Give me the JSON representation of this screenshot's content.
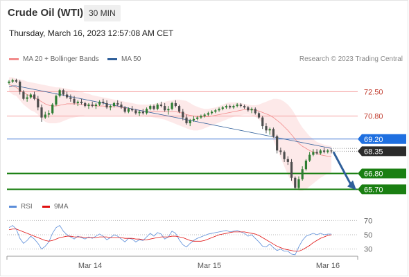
{
  "header": {
    "title": "Crude Oil (WTI)",
    "timeframe": "30 MIN",
    "datetime": "Thursday, March 16, 2023 12:57:08 AM CET"
  },
  "legend": {
    "ma20_label": "MA 20 + Bollinger Bands",
    "ma20_color": "#f28b8b",
    "ma50_label": "MA 50",
    "ma50_color": "#2f5f9a",
    "research": "Research © 2023 Trading Central"
  },
  "rsi_legend": {
    "rsi_label": "RSI",
    "rsi_color": "#5b8dd9",
    "ma_label": "9MA",
    "ma_color": "#e01010"
  },
  "chart_data": [
    {
      "type": "candlestick",
      "title": "Crude Oil (WTI)",
      "x_labels": [
        "Mar 14",
        "Mar 15",
        "Mar 16"
      ],
      "ylim": [
        64.8,
        74.3
      ],
      "candles": [
        [
          73.1,
          73.3,
          73.0,
          73.2
        ],
        [
          73.2,
          73.4,
          73.1,
          73.3
        ],
        [
          73.3,
          73.4,
          73.1,
          73.2
        ],
        [
          73.2,
          73.3,
          72.3,
          72.5
        ],
        [
          72.5,
          72.6,
          71.9,
          72.0
        ],
        [
          72.0,
          72.3,
          71.8,
          72.1
        ],
        [
          72.1,
          72.4,
          72.0,
          72.3
        ],
        [
          72.3,
          72.5,
          71.9,
          72.0
        ],
        [
          72.0,
          72.2,
          71.2,
          71.4
        ],
        [
          71.4,
          71.6,
          70.4,
          70.7
        ],
        [
          70.7,
          71.1,
          70.6,
          70.9
        ],
        [
          70.9,
          71.2,
          70.7,
          71.0
        ],
        [
          71.0,
          71.7,
          70.9,
          71.6
        ],
        [
          71.6,
          72.3,
          71.5,
          72.2
        ],
        [
          72.2,
          72.7,
          72.1,
          72.6
        ],
        [
          72.6,
          72.7,
          72.2,
          72.3
        ],
        [
          72.3,
          72.5,
          72.0,
          72.1
        ],
        [
          72.1,
          72.3,
          71.8,
          72.0
        ],
        [
          72.0,
          72.2,
          71.6,
          71.7
        ],
        [
          71.7,
          71.9,
          71.5,
          71.8
        ],
        [
          71.8,
          72.0,
          71.6,
          71.7
        ],
        [
          71.7,
          71.8,
          71.4,
          71.5
        ],
        [
          71.5,
          71.7,
          71.3,
          71.6
        ],
        [
          71.6,
          71.8,
          71.4,
          71.5
        ],
        [
          71.5,
          71.7,
          71.3,
          71.6
        ],
        [
          71.6,
          71.9,
          71.5,
          71.8
        ],
        [
          71.8,
          72.0,
          71.6,
          71.7
        ],
        [
          71.7,
          71.9,
          71.3,
          71.4
        ],
        [
          71.4,
          71.6,
          71.2,
          71.5
        ],
        [
          71.5,
          71.8,
          71.4,
          71.7
        ],
        [
          71.7,
          71.9,
          71.5,
          71.6
        ],
        [
          71.6,
          71.8,
          71.3,
          71.4
        ],
        [
          71.4,
          71.5,
          71.0,
          71.1
        ],
        [
          71.1,
          71.4,
          71.0,
          71.3
        ],
        [
          71.3,
          71.5,
          71.1,
          71.2
        ],
        [
          71.2,
          71.3,
          70.9,
          71.0
        ],
        [
          71.0,
          71.2,
          70.8,
          71.1
        ],
        [
          71.1,
          71.3,
          70.9,
          71.0
        ],
        [
          71.0,
          71.4,
          70.9,
          71.3
        ],
        [
          71.3,
          71.6,
          71.2,
          71.5
        ],
        [
          71.5,
          71.6,
          71.2,
          71.3
        ],
        [
          71.3,
          71.7,
          71.2,
          71.6
        ],
        [
          71.6,
          71.8,
          71.4,
          71.5
        ],
        [
          71.5,
          71.7,
          71.1,
          71.2
        ],
        [
          71.2,
          71.5,
          70.9,
          71.3
        ],
        [
          71.3,
          71.8,
          71.2,
          71.7
        ],
        [
          71.7,
          71.9,
          71.4,
          71.5
        ],
        [
          71.5,
          71.6,
          71.0,
          71.1
        ],
        [
          71.1,
          71.3,
          70.5,
          70.7
        ],
        [
          70.7,
          70.9,
          70.2,
          70.3
        ],
        [
          70.3,
          70.6,
          70.1,
          70.5
        ],
        [
          70.5,
          70.8,
          70.4,
          70.6
        ],
        [
          70.6,
          70.8,
          70.5,
          70.7
        ],
        [
          70.7,
          70.9,
          70.6,
          70.8
        ],
        [
          70.8,
          71.0,
          70.7,
          70.9
        ],
        [
          70.9,
          71.1,
          70.8,
          71.0
        ],
        [
          71.0,
          71.2,
          70.9,
          71.1
        ],
        [
          71.1,
          71.3,
          71.0,
          71.2
        ],
        [
          71.2,
          71.4,
          71.1,
          71.3
        ],
        [
          71.3,
          71.5,
          71.2,
          71.4
        ],
        [
          71.4,
          71.6,
          71.3,
          71.5
        ],
        [
          71.5,
          71.6,
          71.3,
          71.4
        ],
        [
          71.4,
          71.6,
          71.3,
          71.5
        ],
        [
          71.5,
          71.7,
          71.4,
          71.6
        ],
        [
          71.6,
          71.7,
          71.4,
          71.5
        ],
        [
          71.5,
          71.6,
          71.3,
          71.4
        ],
        [
          71.4,
          71.5,
          71.1,
          71.2
        ],
        [
          71.2,
          71.4,
          71.0,
          71.3
        ],
        [
          71.3,
          71.4,
          70.9,
          71.0
        ],
        [
          71.0,
          71.1,
          70.6,
          70.7
        ],
        [
          70.7,
          70.8,
          69.9,
          70.1
        ],
        [
          70.1,
          70.3,
          69.6,
          69.8
        ],
        [
          69.8,
          70.0,
          69.5,
          69.9
        ],
        [
          69.9,
          70.0,
          69.3,
          69.4
        ],
        [
          69.4,
          69.5,
          68.2,
          68.4
        ],
        [
          68.4,
          68.6,
          68.1,
          68.3
        ],
        [
          68.3,
          68.4,
          67.6,
          67.8
        ],
        [
          67.8,
          68.0,
          67.4,
          67.6
        ],
        [
          67.6,
          67.8,
          66.3,
          66.5
        ],
        [
          66.5,
          66.6,
          65.7,
          65.8
        ],
        [
          65.8,
          66.6,
          65.7,
          66.4
        ],
        [
          66.4,
          67.3,
          66.3,
          67.1
        ],
        [
          67.1,
          67.8,
          67.0,
          67.7
        ],
        [
          67.7,
          68.3,
          67.6,
          68.1
        ],
        [
          68.1,
          68.5,
          68.0,
          68.3
        ],
        [
          68.3,
          68.5,
          68.1,
          68.2
        ],
        [
          68.2,
          68.5,
          68.1,
          68.4
        ],
        [
          68.4,
          68.6,
          68.2,
          68.3
        ],
        [
          68.3,
          68.5,
          68.2,
          68.4
        ],
        [
          68.4,
          68.5,
          68.2,
          68.35
        ]
      ],
      "ma20": [
        73.0,
        72.9,
        72.8,
        72.6,
        72.45,
        72.3,
        72.2,
        72.1,
        71.95,
        71.8,
        71.65,
        71.55,
        71.5,
        71.5,
        71.55,
        71.6,
        71.65,
        71.65,
        71.65,
        71.65,
        71.6,
        71.6,
        71.55,
        71.55,
        71.5,
        71.5,
        71.5,
        71.45,
        71.45,
        71.45,
        71.45,
        71.4,
        71.35,
        71.35,
        71.3,
        71.25,
        71.2,
        71.15,
        71.1,
        71.1,
        71.1,
        71.1,
        71.1,
        71.1,
        71.1,
        71.1,
        71.1,
        71.05,
        71.0,
        70.9,
        70.85,
        70.8,
        70.75,
        70.75,
        70.75,
        70.75,
        70.8,
        70.85,
        70.9,
        70.95,
        71.0,
        71.05,
        71.1,
        71.15,
        71.2,
        71.25,
        71.25,
        71.25,
        71.2,
        71.15,
        71.05,
        70.95,
        70.85,
        70.7,
        70.5,
        70.3,
        70.05,
        69.8,
        69.5,
        69.2,
        68.9,
        68.7,
        68.55,
        68.4,
        68.3,
        68.2,
        68.1,
        68.05,
        68.0,
        68.0
      ],
      "bb_upper": [
        73.5,
        73.5,
        73.4,
        73.35,
        73.3,
        73.2,
        73.15,
        73.1,
        73.05,
        73.0,
        72.95,
        72.9,
        72.85,
        72.8,
        72.8,
        72.75,
        72.7,
        72.65,
        72.6,
        72.55,
        72.5,
        72.4,
        72.35,
        72.25,
        72.2,
        72.15,
        72.1,
        72.05,
        72.0,
        71.95,
        71.9,
        71.85,
        71.8,
        71.75,
        71.7,
        71.65,
        71.6,
        71.6,
        71.6,
        71.6,
        71.65,
        71.7,
        71.75,
        71.8,
        71.85,
        71.9,
        71.95,
        71.95,
        71.9,
        71.85,
        71.7,
        71.55,
        71.45,
        71.35,
        71.3,
        71.3,
        71.35,
        71.4,
        71.5,
        71.6,
        71.7,
        71.75,
        71.75,
        71.75,
        71.7,
        71.65,
        71.6,
        71.55,
        71.55,
        71.6,
        71.7,
        71.8,
        71.9,
        72.0,
        72.0,
        71.95,
        71.8,
        71.6,
        71.3,
        70.9,
        70.4,
        70.0,
        69.7,
        69.4,
        69.2,
        69.0,
        68.9,
        68.8,
        68.75,
        68.7
      ],
      "bb_lower": [
        72.5,
        72.3,
        72.2,
        71.9,
        71.6,
        71.4,
        71.2,
        71.1,
        70.9,
        70.6,
        70.4,
        70.3,
        70.3,
        70.3,
        70.35,
        70.45,
        70.55,
        70.65,
        70.7,
        70.75,
        70.8,
        70.85,
        70.85,
        70.85,
        70.85,
        70.85,
        70.85,
        70.85,
        70.85,
        70.85,
        70.85,
        70.85,
        70.85,
        70.85,
        70.85,
        70.85,
        70.85,
        70.8,
        70.75,
        70.75,
        70.7,
        70.65,
        70.6,
        70.55,
        70.45,
        70.35,
        70.25,
        70.15,
        70.05,
        69.95,
        69.85,
        69.8,
        69.8,
        69.85,
        69.95,
        70.05,
        70.15,
        70.25,
        70.35,
        70.45,
        70.55,
        70.65,
        70.75,
        70.8,
        70.85,
        70.9,
        70.9,
        70.85,
        70.75,
        70.55,
        70.3,
        70.0,
        69.6,
        69.1,
        68.5,
        67.9,
        67.3,
        66.7,
        66.2,
        65.8,
        65.6,
        65.6,
        65.7,
        65.9,
        66.1,
        66.3,
        66.5,
        66.65,
        66.8,
        66.9
      ],
      "ma50": [
        72.85,
        72.9,
        72.9,
        72.85,
        72.8,
        72.75,
        72.7,
        72.65,
        72.6,
        72.55,
        72.5,
        72.45,
        72.4,
        72.35,
        72.3,
        72.25,
        72.2,
        72.15,
        72.1,
        72.05,
        72.0,
        71.95,
        71.9,
        71.85,
        71.8,
        71.75,
        71.7,
        71.65,
        71.6,
        71.55,
        71.5,
        71.45,
        71.4,
        71.35,
        71.3,
        71.25,
        71.2,
        71.15,
        71.1,
        71.05,
        71.0,
        70.95,
        70.9,
        70.85,
        70.8,
        70.75,
        70.7,
        70.65,
        70.6,
        70.55,
        70.5,
        70.45,
        70.4,
        70.35,
        70.3,
        70.25,
        70.2,
        70.15,
        70.1,
        70.05,
        70.0,
        69.95,
        69.9,
        69.85,
        69.8,
        69.75,
        69.7,
        69.65,
        69.6,
        69.55,
        69.5,
        69.45,
        69.4,
        69.35,
        69.3,
        69.25,
        69.2,
        69.15,
        69.1,
        69.05,
        69.0,
        68.95,
        68.9,
        68.85,
        68.8,
        68.75,
        68.7,
        68.65,
        68.6,
        68.55
      ],
      "levels": [
        {
          "value": 72.5,
          "label": "72.50",
          "kind": "resistance",
          "color": "#f4a0a0",
          "text_color": "#c0392b"
        },
        {
          "value": 70.8,
          "label": "70.80",
          "kind": "resistance",
          "color": "#f4a0a0",
          "text_color": "#c0392b"
        },
        {
          "value": 69.2,
          "label": "69.20",
          "kind": "pivot",
          "color": "#4a7fd6",
          "badge": "#1e6fe0"
        },
        {
          "value": 68.35,
          "label": "68.35",
          "kind": "last",
          "color": "#aaaaaa",
          "badge": "#2b2b2b"
        },
        {
          "value": 66.8,
          "label": "66.80",
          "kind": "support",
          "color": "#1a7f12",
          "badge": "#1a7f12"
        },
        {
          "value": 65.7,
          "label": "65.70",
          "kind": "support",
          "color": "#1a7f12",
          "badge": "#1a7f12"
        }
      ],
      "forecast_arrow": {
        "from": 68.3,
        "to": 65.7,
        "color": "#2f5f9a"
      }
    },
    {
      "type": "line",
      "title": "RSI",
      "ylim": [
        20,
        80
      ],
      "yticks": [
        "70",
        "50",
        "30"
      ],
      "series": [
        {
          "name": "RSI",
          "color": "#5b8dd9",
          "values": [
            60,
            63,
            58,
            45,
            38,
            42,
            48,
            44,
            38,
            30,
            34,
            40,
            52,
            60,
            63,
            55,
            50,
            47,
            44,
            48,
            46,
            44,
            47,
            45,
            48,
            51,
            48,
            43,
            46,
            50,
            48,
            44,
            40,
            45,
            44,
            40,
            43,
            42,
            47,
            52,
            48,
            53,
            51,
            44,
            47,
            55,
            52,
            43,
            36,
            33,
            38,
            42,
            45,
            47,
            49,
            51,
            52,
            53,
            54,
            55,
            56,
            54,
            55,
            56,
            54,
            52,
            48,
            50,
            45,
            40,
            34,
            33,
            37,
            32,
            28,
            30,
            27,
            27,
            23,
            22,
            33,
            42,
            48,
            50,
            52,
            50,
            52,
            50,
            51,
            51
          ]
        },
        {
          "name": "9MA",
          "color": "#e01010",
          "values": [
            57,
            58,
            58,
            56,
            54,
            52,
            50,
            48,
            46,
            44,
            42,
            41,
            42,
            44,
            46,
            47,
            48,
            48,
            47,
            47,
            47,
            46,
            46,
            46,
            46,
            47,
            47,
            47,
            46,
            46,
            46,
            46,
            45,
            45,
            45,
            44,
            44,
            43,
            43,
            44,
            45,
            46,
            47,
            47,
            47,
            48,
            48,
            47,
            46,
            44,
            42,
            41,
            41,
            41,
            42,
            44,
            46,
            48,
            50,
            51,
            52,
            53,
            54,
            54,
            54,
            54,
            53,
            52,
            51,
            49,
            46,
            43,
            40,
            37,
            34,
            32,
            30,
            29,
            28,
            27,
            27,
            29,
            32,
            35,
            39,
            42,
            45,
            47,
            49,
            50
          ]
        }
      ]
    }
  ]
}
